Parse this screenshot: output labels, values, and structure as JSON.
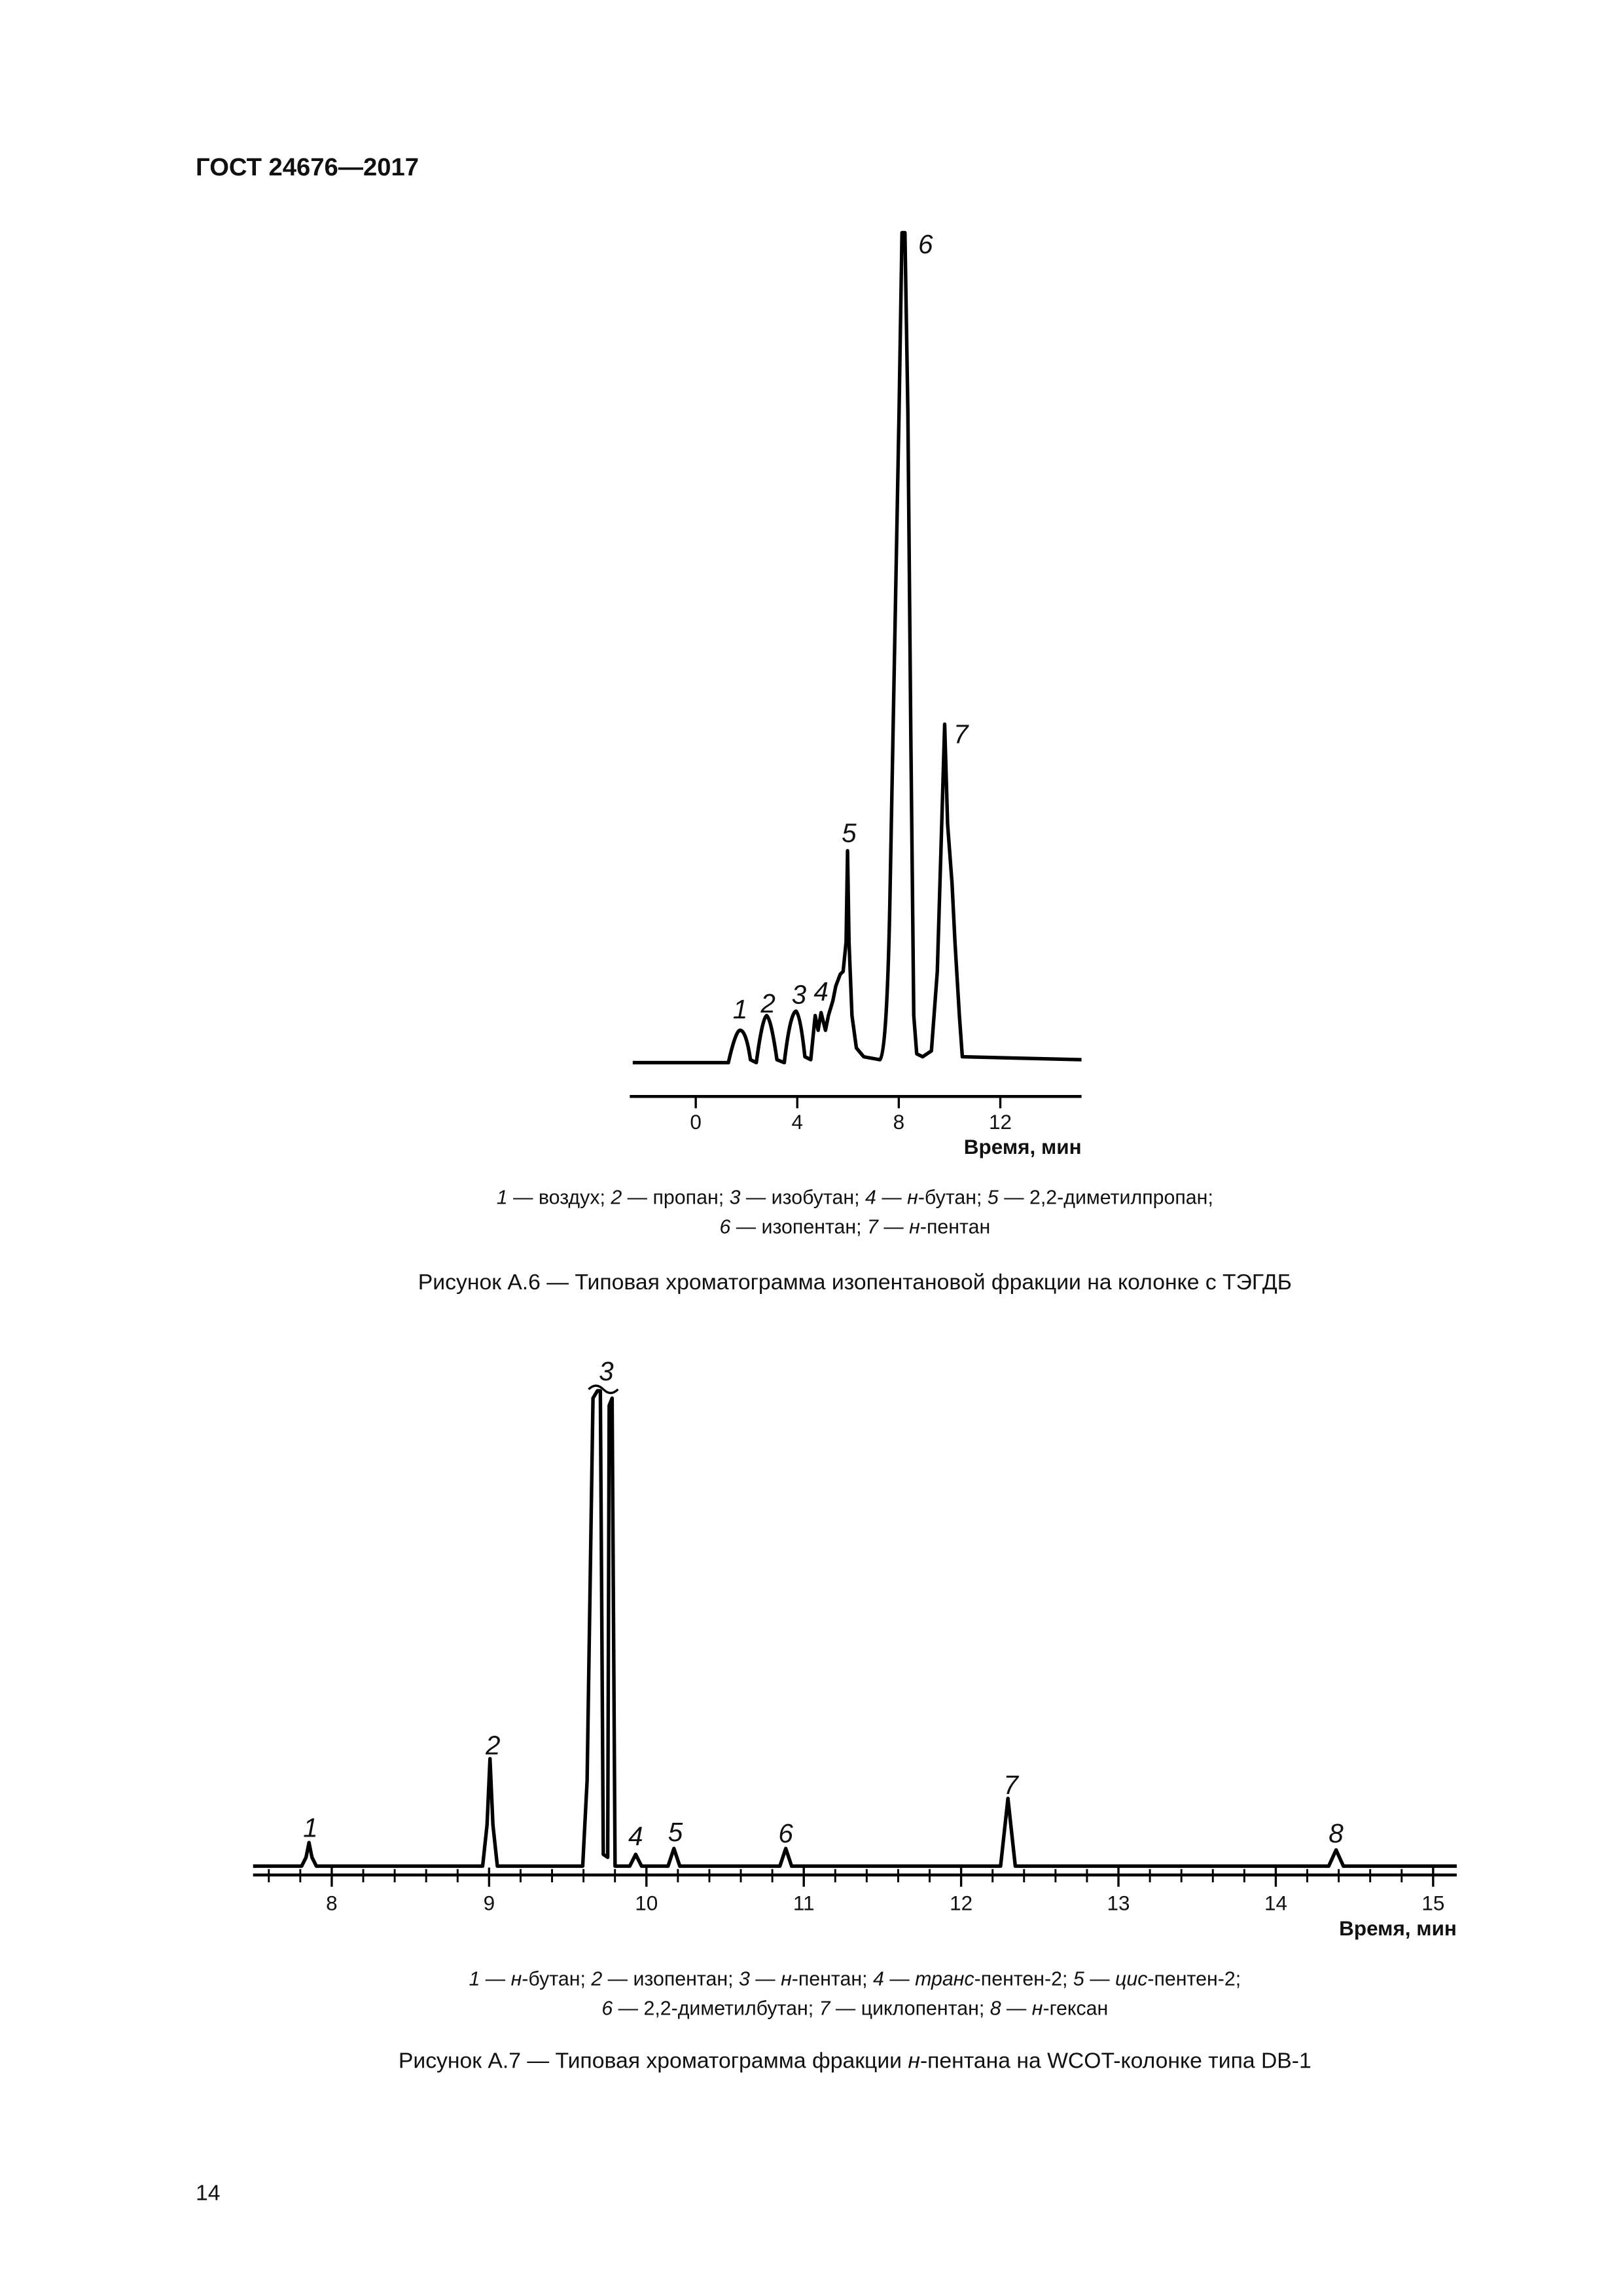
{
  "header": {
    "title": "ГОСТ 24676—2017"
  },
  "figures": [
    {
      "peak_labels": [
        "1",
        "2",
        "3",
        "4",
        "5",
        "6",
        "7"
      ],
      "xlim": [
        -2.6,
        15.2
      ],
      "xticks": [
        0,
        4,
        8,
        12
      ],
      "x_label": "Время, мин",
      "legend": [
        [
          {
            "text": "1",
            "italic": true
          },
          {
            "text": " — воздух; "
          },
          {
            "text": "2",
            "italic": true
          },
          {
            "text": " — пропан; "
          },
          {
            "text": "3",
            "italic": true
          },
          {
            "text": " — изобутан; "
          },
          {
            "text": "4",
            "italic": true
          },
          {
            "text": " — "
          },
          {
            "text": "н",
            "italic": true
          },
          {
            "text": "-бутан; "
          },
          {
            "text": "5",
            "italic": true
          },
          {
            "text": " — 2,2-диметилпропан;"
          }
        ],
        [
          {
            "text": "6",
            "italic": true
          },
          {
            "text": " — изопентан; "
          },
          {
            "text": "7",
            "italic": true
          },
          {
            "text": " — "
          },
          {
            "text": "н",
            "italic": true
          },
          {
            "text": "-пентан"
          }
        ]
      ],
      "caption": [
        {
          "text": "Рисунок А.6 — Типовая хроматограмма изопентановой фракции на колонке с ТЭГДБ"
        }
      ]
    },
    {
      "peak_labels": [
        "1",
        "2",
        "3",
        "4",
        "5",
        "6",
        "7",
        "8"
      ],
      "xlim": [
        7.5,
        15.15
      ],
      "xticks": [
        8,
        9,
        10,
        11,
        12,
        13,
        14,
        15
      ],
      "minor_tick_step": 0.2,
      "x_label": "Время, мин",
      "legend": [
        [
          {
            "text": "1",
            "italic": true
          },
          {
            "text": " — "
          },
          {
            "text": "н",
            "italic": true
          },
          {
            "text": "-бутан; "
          },
          {
            "text": "2",
            "italic": true
          },
          {
            "text": " — изопентан; "
          },
          {
            "text": "3",
            "italic": true
          },
          {
            "text": " — "
          },
          {
            "text": "н",
            "italic": true
          },
          {
            "text": "-пентан; "
          },
          {
            "text": "4",
            "italic": true
          },
          {
            "text": " — "
          },
          {
            "text": "транс",
            "italic": true
          },
          {
            "text": "-пентен-2; "
          },
          {
            "text": "5",
            "italic": true
          },
          {
            "text": " — "
          },
          {
            "text": "цис",
            "italic": true
          },
          {
            "text": "-пентен-2;"
          }
        ],
        [
          {
            "text": "6",
            "italic": true
          },
          {
            "text": " — 2,2-диметилбутан; "
          },
          {
            "text": "7",
            "italic": true
          },
          {
            "text": " — циклопентан; "
          },
          {
            "text": "8",
            "italic": true
          },
          {
            "text": " — "
          },
          {
            "text": "н",
            "italic": true
          },
          {
            "text": "-гексан"
          }
        ]
      ],
      "caption": [
        {
          "text": "Рисунок А.7 — Типовая хроматограмма фракции "
        },
        {
          "text": "н",
          "italic": true
        },
        {
          "text": "-пентана на WCOT-колонке типа DB-1"
        }
      ]
    }
  ],
  "footer": {
    "page_number": "14"
  }
}
